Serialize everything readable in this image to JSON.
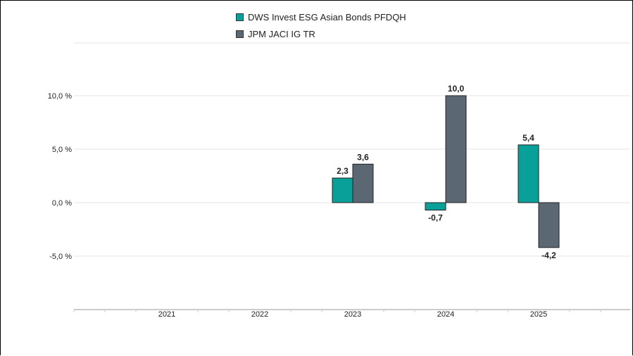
{
  "chart_data": {
    "type": "bar",
    "categories": [
      "2021",
      "2022",
      "2023",
      "2024",
      "2025"
    ],
    "series": [
      {
        "name": "DWS Invest ESG Asian Bonds PFDQH",
        "color": "#0aa09a",
        "values": [
          null,
          null,
          2.3,
          -0.7,
          5.4
        ],
        "labels": [
          "",
          "",
          "2,3",
          "-0,7",
          "5,4"
        ]
      },
      {
        "name": "JPM JACI IG TR",
        "color": "#5b6874",
        "values": [
          null,
          null,
          3.6,
          10.0,
          -4.2
        ],
        "labels": [
          "",
          "",
          "3,6",
          "10,0",
          "-4,2"
        ]
      }
    ],
    "y_ticks": [
      10,
      5,
      0,
      -5
    ],
    "y_tick_labels": [
      "10,0 %",
      "5,0 %",
      "0,0 %",
      "-5,0 %"
    ],
    "ylim": [
      -10,
      15
    ],
    "grid": true,
    "legend_position": "top-center"
  }
}
